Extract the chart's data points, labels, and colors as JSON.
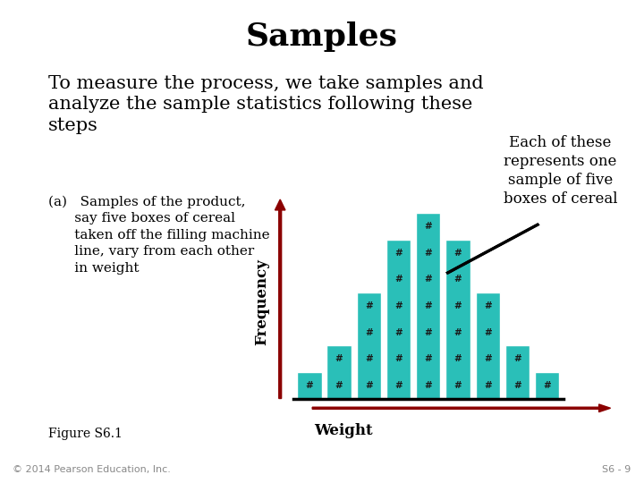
{
  "title": "Samples",
  "subtitle_lines": [
    "To measure the process, we take samples and",
    "analyze the sample statistics following these",
    "steps"
  ],
  "body_text": "(a)   Samples of the product,\n      say five boxes of cereal\n      taken off the filling machine\n      line, vary from each other\n      in weight",
  "annotation_text": "Each of these\nrepresents one\nsample of five\nboxes of cereal",
  "xlabel": "Weight",
  "ylabel": "Frequency",
  "figure_label": "Figure S6.1",
  "copyright": "© 2014 Pearson Education, Inc.",
  "slide_num": "S6 - 9",
  "bar_heights": [
    1,
    2,
    4,
    6,
    7,
    6,
    4,
    2,
    1
  ],
  "bar_color": "#2abfb8",
  "bar_edge_color": "#ffffff",
  "background_color": "#ffffff",
  "title_fontsize": 26,
  "subtitle_fontsize": 15,
  "body_fontsize": 11,
  "annotation_fontsize": 12,
  "axis_label_fontsize": 12,
  "arrow_color": "#8b0000",
  "ann_arrow_color": "#000000"
}
